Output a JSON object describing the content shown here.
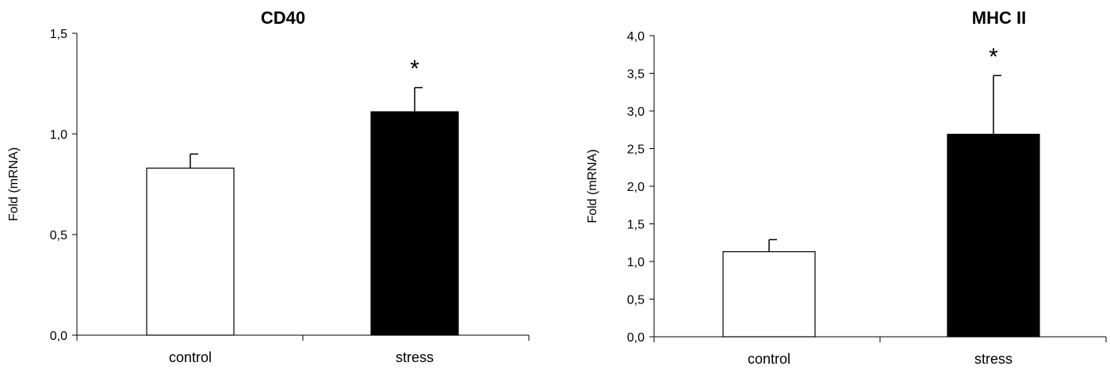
{
  "chart_data": [
    {
      "type": "bar",
      "title": "CD40",
      "ylabel": "Fold (mRNA)",
      "xlabel": "",
      "categories": [
        "control",
        "stress"
      ],
      "values": [
        0.83,
        1.11
      ],
      "error": [
        0.07,
        0.12
      ],
      "significance": [
        "",
        "*"
      ],
      "bar_colors": [
        "#ffffff",
        "#000000"
      ],
      "ylim": [
        0,
        1.5
      ],
      "yticks": [
        0,
        0.5,
        1.0,
        1.5
      ],
      "ytick_labels": [
        "0,0",
        "0,5",
        "1,0",
        "1,5"
      ],
      "grid": false
    },
    {
      "type": "bar",
      "title": "MHC II",
      "ylabel": "Fold (mRNA)",
      "xlabel": "",
      "categories": [
        "control",
        "stress"
      ],
      "values": [
        1.13,
        2.69
      ],
      "error": [
        0.16,
        0.78
      ],
      "significance": [
        "",
        "*"
      ],
      "bar_colors": [
        "#ffffff",
        "#000000"
      ],
      "ylim": [
        0,
        4.0
      ],
      "yticks": [
        0,
        0.5,
        1.0,
        1.5,
        2.0,
        2.5,
        3.0,
        3.5,
        4.0
      ],
      "ytick_labels": [
        "0,0",
        "0,5",
        "1,0",
        "1,5",
        "2,0",
        "2,5",
        "3,0",
        "3,5",
        "4,0"
      ],
      "grid": false
    }
  ]
}
